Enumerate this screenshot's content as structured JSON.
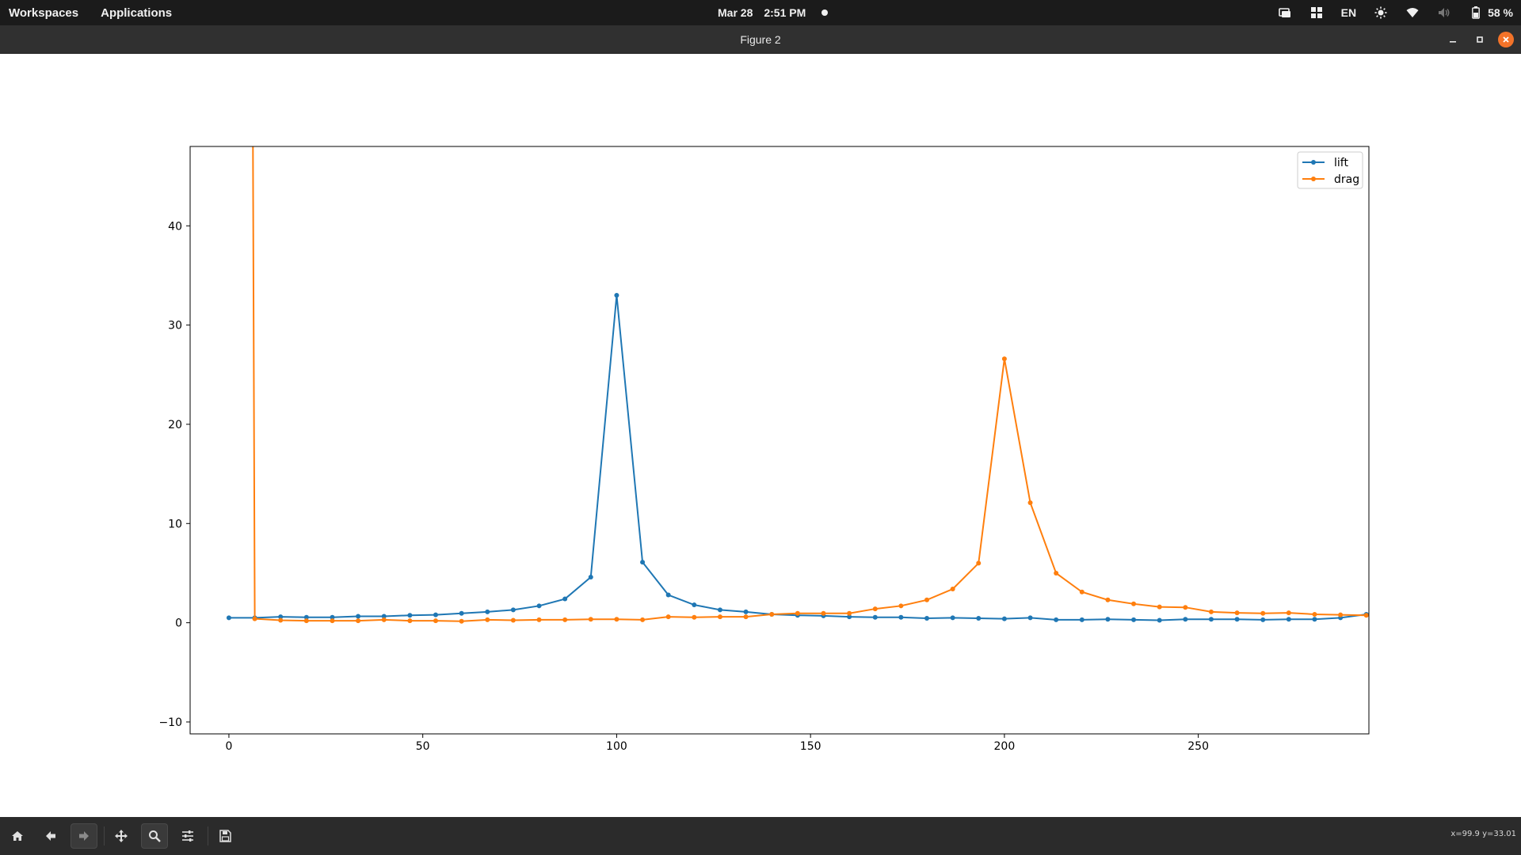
{
  "topbar": {
    "workspaces": "Workspaces",
    "applications": "Applications",
    "date": "Mar 28",
    "time": "2:51 PM",
    "language": "EN",
    "battery": "58 %"
  },
  "window": {
    "title": "Figure 2"
  },
  "toolbar": {
    "coords": "x=99.9 y=33.01",
    "buttons": [
      "home-icon",
      "back-arrow-icon",
      "forward-arrow-icon",
      "pan-icon",
      "zoom-icon",
      "configure-subplots-icon",
      "save-icon"
    ]
  },
  "colors": {
    "lift": "#1f77b4",
    "drag": "#ff7f0e",
    "close": "#f37329"
  },
  "chart_data": {
    "type": "line",
    "title": "",
    "xlabel": "",
    "ylabel": "",
    "xlim": [
      -10,
      294
    ],
    "ylim": [
      -11.2,
      48
    ],
    "xticks": [
      0,
      50,
      100,
      150,
      200,
      250
    ],
    "yticks": [
      -10,
      0,
      10,
      20,
      30,
      40
    ],
    "legend_position": "top-right",
    "grid": false,
    "x": [
      0,
      6.67,
      13.33,
      20,
      26.67,
      33.33,
      40,
      46.67,
      53.33,
      60,
      66.67,
      73.33,
      80,
      86.67,
      93.33,
      100,
      106.67,
      113.33,
      120,
      126.67,
      133.33,
      140,
      146.67,
      153.33,
      160,
      166.67,
      173.33,
      180,
      186.67,
      193.33,
      200,
      206.67,
      213.33,
      220,
      226.67,
      233.33,
      240,
      246.67,
      253.33,
      260,
      266.67,
      273.33,
      280,
      286.67,
      293.33
    ],
    "series": [
      {
        "name": "lift",
        "values": [
          0.5,
          0.5,
          0.6,
          0.55,
          0.55,
          0.65,
          0.65,
          0.75,
          0.8,
          0.95,
          1.1,
          1.3,
          1.7,
          2.4,
          4.6,
          33.0,
          6.1,
          2.8,
          1.8,
          1.3,
          1.1,
          0.85,
          0.75,
          0.7,
          0.6,
          0.55,
          0.55,
          0.45,
          0.5,
          0.45,
          0.4,
          0.5,
          0.3,
          0.3,
          0.35,
          0.3,
          0.25,
          0.35,
          0.35,
          0.35,
          0.3,
          0.35,
          0.35,
          0.5,
          0.85
        ]
      },
      {
        "name": "drag",
        "values": [
          null,
          0.4,
          0.25,
          0.2,
          0.2,
          0.2,
          0.3,
          0.2,
          0.2,
          0.15,
          0.3,
          0.25,
          0.3,
          0.3,
          0.35,
          0.35,
          0.3,
          0.6,
          0.55,
          0.6,
          0.6,
          0.85,
          0.95,
          0.95,
          0.95,
          1.4,
          1.7,
          2.3,
          3.4,
          6.0,
          26.6,
          12.1,
          5.0,
          3.1,
          2.3,
          1.9,
          1.6,
          1.55,
          1.1,
          1.0,
          0.95,
          1.0,
          0.85,
          0.8,
          0.75
        ]
      }
    ],
    "drag_initial_spike": {
      "x": [
        6.2,
        6.67
      ],
      "y": [
        48,
        0.4
      ]
    }
  }
}
